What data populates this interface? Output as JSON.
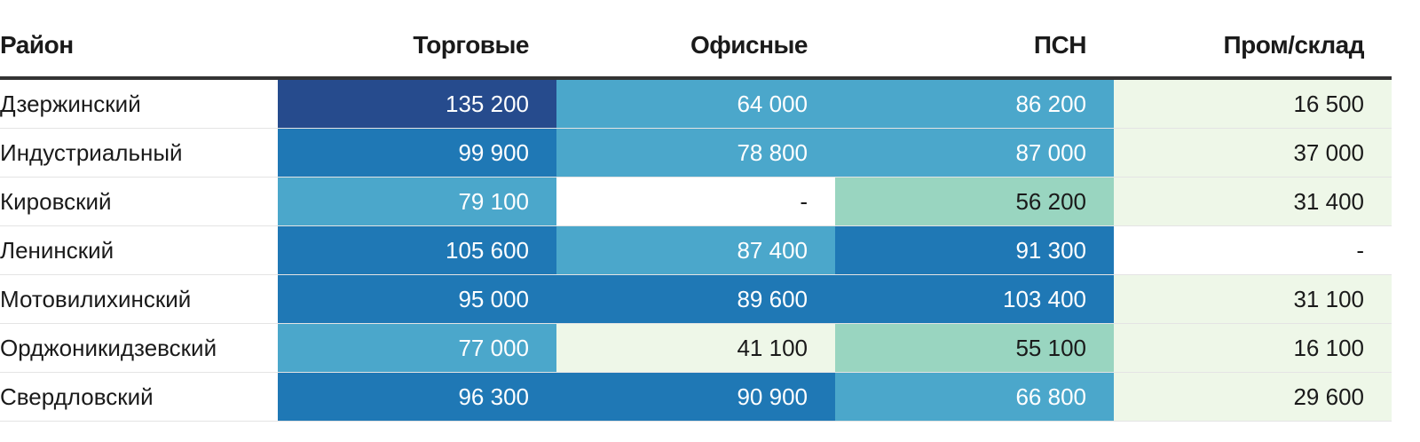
{
  "chart_data": {
    "type": "table",
    "columns": [
      "Район",
      "Торговые",
      "Офисные",
      "ПСН",
      "Пром/склад"
    ],
    "rows": [
      {
        "name": "Дзержинский",
        "values": [
          "135 200",
          "64 000",
          "86 200",
          "16 500"
        ]
      },
      {
        "name": "Индустриальный",
        "values": [
          "99 900",
          "78 800",
          "87 000",
          "37 000"
        ]
      },
      {
        "name": "Кировский",
        "values": [
          "79 100",
          "-",
          "56 200",
          "31 400"
        ]
      },
      {
        "name": "Ленинский",
        "values": [
          "105 600",
          "87 400",
          "91 300",
          "-"
        ]
      },
      {
        "name": "Мотовилихинский",
        "values": [
          "95 000",
          "89 600",
          "103 400",
          "31 100"
        ]
      },
      {
        "name": "Орджоникидзевский",
        "values": [
          "77 000",
          "41 100",
          "55 100",
          "16 100"
        ]
      },
      {
        "name": "Свердловский",
        "values": [
          "96 300",
          "90 900",
          "66 800",
          "29 600"
        ]
      }
    ],
    "color_scale": [
      {
        "min": 0,
        "max": 0,
        "color": "#ffffff"
      },
      {
        "min": 1,
        "max": 50000,
        "color": "#eef7e8"
      },
      {
        "min": 50000,
        "max": 60000,
        "color": "#99d5c0"
      },
      {
        "min": 60000,
        "max": 89000,
        "color": "#4ba7cb"
      },
      {
        "min": 89000,
        "max": 130000,
        "color": "#1f78b5"
      },
      {
        "min": 130000,
        "max": 1000000,
        "color": "#264b8d"
      }
    ]
  }
}
